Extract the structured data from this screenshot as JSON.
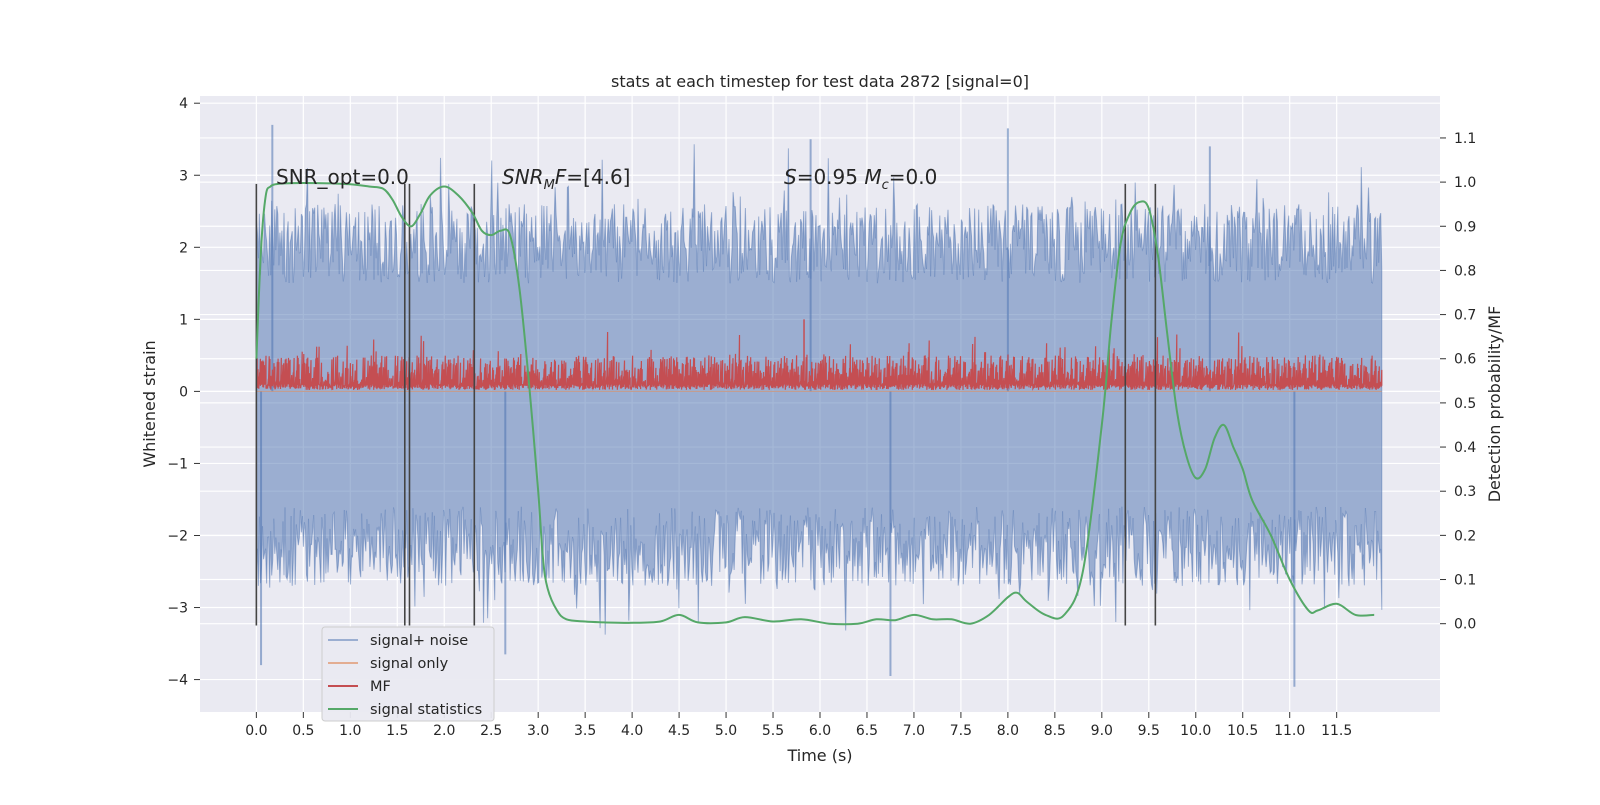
{
  "chart_data": {
    "type": "line",
    "title": "stats at each timestep for test data 2872 [signal=0]",
    "xlabel": "Time (s)",
    "ylabel": "Whitened strain",
    "ylabel_right": "Detection probability/MF",
    "xlim": [
      -0.6,
      12.6
    ],
    "ylim": [
      -4.45,
      4.1
    ],
    "ylim_right": [
      -0.2,
      1.195
    ],
    "x_ticks": [
      0.0,
      0.5,
      1.0,
      1.5,
      2.0,
      2.5,
      3.0,
      3.5,
      4.0,
      4.5,
      5.0,
      5.5,
      6.0,
      6.5,
      7.0,
      7.5,
      8.0,
      8.5,
      9.0,
      9.5,
      10.0,
      10.5,
      11.0,
      11.5
    ],
    "x_tick_labels": [
      "0.0",
      "0.5",
      "1.0",
      "1.5",
      "2.0",
      "2.5",
      "3.0",
      "3.5",
      "4.0",
      "4.5",
      "5.0",
      "5.5",
      "6.0",
      "6.5",
      "7.0",
      "7.5",
      "8.0",
      "8.5",
      "9.0",
      "9.5",
      "10.0",
      "10.5",
      "11.0",
      "11.5"
    ],
    "y_ticks": [
      -4,
      -3,
      -2,
      -1,
      0,
      1,
      2,
      3,
      4
    ],
    "y_tick_labels": [
      "−4",
      "−3",
      "−2",
      "−1",
      "0",
      "1",
      "2",
      "3",
      "4"
    ],
    "y_right_ticks": [
      0.0,
      0.1,
      0.2,
      0.3,
      0.4,
      0.5,
      0.6,
      0.7,
      0.8,
      0.9,
      1.0,
      1.1
    ],
    "y_right_tick_labels": [
      "0.0",
      "0.1",
      "0.2",
      "0.3",
      "0.4",
      "0.5",
      "0.6",
      "0.7",
      "0.8",
      "0.9",
      "1.0",
      "1.1"
    ],
    "grid": true,
    "legend_position": "bottom-left",
    "annotations": [
      {
        "text": "SNR_opt=0.0",
        "x": 0.2,
        "y": 2.9
      },
      {
        "text": "SNR_MF=[4.6]",
        "x": 2.6,
        "y": 2.9
      },
      {
        "text": "S=0.95   M_c=0.0",
        "x": 5.6,
        "y": 2.9
      }
    ],
    "vertical_markers": {
      "x": [
        0.0,
        1.58,
        1.63,
        2.32,
        9.25,
        9.57
      ],
      "y_range": [
        -3.25,
        2.88
      ],
      "color": "#444444"
    },
    "series": [
      {
        "name": "signal+ noise",
        "axis": "left",
        "color": "#4c72b0",
        "style": "noise",
        "x_range": [
          0.0,
          11.98
        ],
        "typical_amplitude": 1.6,
        "extreme_values": [
          3.7,
          -3.8,
          3.6,
          -4.1,
          -3.65
        ]
      },
      {
        "name": "signal only",
        "axis": "left",
        "color": "#dd8452",
        "values_note": "",
        "x": [
          0.0,
          11.98
        ],
        "y": [
          0.0,
          0.0
        ]
      },
      {
        "name": "MF",
        "axis": "left",
        "color": "#c44e52",
        "style": "noise",
        "x_range": [
          0.0,
          11.98
        ],
        "baseline": 0.0,
        "typical_high": 0.55,
        "peak": 1.0
      },
      {
        "name": "signal statistics",
        "axis": "right",
        "color": "#55a868",
        "x": [
          0.0,
          0.05,
          0.1,
          0.15,
          0.2,
          0.3,
          0.5,
          0.8,
          1.0,
          1.2,
          1.35,
          1.45,
          1.55,
          1.65,
          1.75,
          1.85,
          2.0,
          2.15,
          2.3,
          2.4,
          2.5,
          2.6,
          2.7,
          2.8,
          2.9,
          3.0,
          3.05,
          3.1,
          3.2,
          3.3,
          3.5,
          3.7,
          4.0,
          4.3,
          4.5,
          4.7,
          5.0,
          5.2,
          5.5,
          5.8,
          6.1,
          6.4,
          6.6,
          6.8,
          7.0,
          7.2,
          7.4,
          7.6,
          7.8,
          8.0,
          8.1,
          8.2,
          8.4,
          8.6,
          8.8,
          9.0,
          9.1,
          9.2,
          9.3,
          9.4,
          9.5,
          9.6,
          9.7,
          9.8,
          9.9,
          10.0,
          10.1,
          10.2,
          10.3,
          10.4,
          10.5,
          10.6,
          10.8,
          11.0,
          11.2,
          11.3,
          11.5,
          11.7,
          11.9
        ],
        "y": [
          0.6,
          0.85,
          0.97,
          0.99,
          0.995,
          0.997,
          0.998,
          0.997,
          0.995,
          0.99,
          0.985,
          0.96,
          0.92,
          0.9,
          0.93,
          0.97,
          0.99,
          0.97,
          0.93,
          0.89,
          0.88,
          0.89,
          0.88,
          0.76,
          0.55,
          0.3,
          0.15,
          0.08,
          0.03,
          0.01,
          0.005,
          0.003,
          0.002,
          0.005,
          0.02,
          0.003,
          0.003,
          0.015,
          0.005,
          0.01,
          0.0,
          0.0,
          0.01,
          0.008,
          0.02,
          0.01,
          0.01,
          0.0,
          0.02,
          0.06,
          0.07,
          0.05,
          0.02,
          0.02,
          0.12,
          0.45,
          0.68,
          0.86,
          0.93,
          0.955,
          0.94,
          0.83,
          0.65,
          0.48,
          0.38,
          0.33,
          0.35,
          0.42,
          0.45,
          0.4,
          0.35,
          0.28,
          0.2,
          0.1,
          0.03,
          0.03,
          0.045,
          0.02,
          0.02
        ]
      }
    ]
  }
}
